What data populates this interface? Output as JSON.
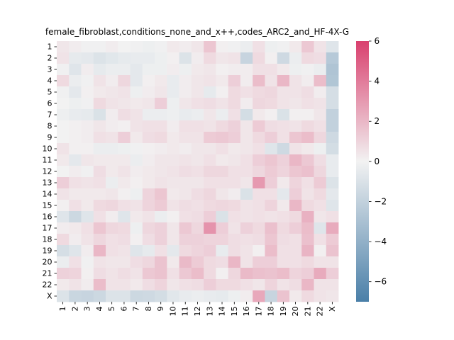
{
  "chart_data": {
    "type": "heatmap",
    "title": "female_fibroblast,conditions_none_and_x++,codes_ARC2_and_HF-4X-G",
    "xlabel": "",
    "ylabel": "",
    "x_categories": [
      "1",
      "2",
      "3",
      "4",
      "5",
      "6",
      "7",
      "8",
      "9",
      "10",
      "11",
      "12",
      "13",
      "14",
      "15",
      "16",
      "17",
      "18",
      "19",
      "20",
      "21",
      "22",
      "X"
    ],
    "y_categories": [
      "1",
      "2",
      "3",
      "4",
      "5",
      "6",
      "7",
      "8",
      "9",
      "10",
      "11",
      "12",
      "13",
      "14",
      "15",
      "16",
      "17",
      "18",
      "19",
      "20",
      "21",
      "22",
      "X"
    ],
    "colorbar": {
      "vmin": -7,
      "vmax": 6,
      "ticks": [
        -6,
        -4,
        -2,
        0,
        2,
        4,
        6
      ],
      "tick_labels": [
        "−6",
        "−4",
        "−2",
        "0",
        "2",
        "4",
        "6"
      ],
      "colormap": "diverging_blue_white_red",
      "color_low": "#4a7fa8",
      "color_mid": "#f2f2f2",
      "color_high": "#d9406e"
    },
    "values": [
      [
        0.4,
        0.2,
        -0.1,
        -0.1,
        0.2,
        0,
        -0.1,
        -0.2,
        -0.1,
        0.3,
        0.2,
        0.4,
        1.5,
        0.1,
        -0.1,
        -0.3,
        0.6,
        -0.2,
        -0.1,
        0.3,
        1.4,
        0.5,
        -0.8
      ],
      [
        0.5,
        -0.5,
        -0.6,
        -0.9,
        -0.7,
        -0.5,
        -0.4,
        -0.4,
        -0.2,
        0.1,
        -0.9,
        0.2,
        0.8,
        0.4,
        0.5,
        -1.8,
        0.8,
        0.1,
        -1.5,
        -0.3,
        0.8,
        0.7,
        -2.5
      ],
      [
        -0.1,
        -0.8,
        0.2,
        -0.5,
        -0.3,
        -0.3,
        -0.6,
        -0.2,
        -0.2,
        0.2,
        -0.2,
        0.3,
        0.4,
        0.1,
        0.2,
        0.2,
        0.6,
        0.6,
        0.3,
        -0.2,
        -0.1,
        -0.3,
        -2.8
      ],
      [
        0.8,
        -0.3,
        -0.1,
        0.5,
        0.2,
        0.9,
        -0.6,
        0.1,
        0.3,
        -0.4,
        0.2,
        0.4,
        0.5,
        0.3,
        1.2,
        0.2,
        1.8,
        0.5,
        2.0,
        0.5,
        0.2,
        1.8,
        -2.7
      ],
      [
        -0.1,
        -0.6,
        0.1,
        0.3,
        0.4,
        0.5,
        -0.2,
        0.2,
        0.4,
        -0.4,
        0.2,
        0.4,
        -0.5,
        0.1,
        0.8,
        0.6,
        0.8,
        0.9,
        0.5,
        0.5,
        0.7,
        0.2,
        -1.2
      ],
      [
        0,
        -0.2,
        -0.1,
        0.8,
        0.5,
        0.4,
        0.3,
        0.4,
        1.2,
        -0.2,
        0.4,
        0.6,
        0.7,
        0.5,
        0.8,
        0.2,
        0.9,
        0.8,
        0.5,
        0.4,
        0.6,
        0.5,
        -1.2
      ],
      [
        -0.2,
        -0.4,
        -0.5,
        -1.0,
        0.2,
        0.7,
        0.5,
        -0.3,
        -0.3,
        -0.2,
        -0.4,
        -0.3,
        0.4,
        -0.3,
        0.6,
        -1.3,
        0.3,
        0.1,
        -1.0,
        0.1,
        0.1,
        0.4,
        -2.0
      ],
      [
        0,
        0.1,
        0.2,
        0.4,
        0.2,
        0.1,
        0.5,
        0.6,
        0.6,
        0.2,
        0.6,
        0.6,
        0.5,
        0.8,
        1.1,
        0.4,
        1.3,
        0.7,
        0.6,
        0.5,
        0.8,
        0.6,
        -2.0
      ],
      [
        0,
        0.1,
        0.2,
        0.6,
        0.5,
        1.2,
        0.3,
        0.7,
        0.8,
        0.3,
        0.5,
        0.5,
        1.3,
        1.4,
        1.2,
        0.4,
        0.8,
        1.2,
        0.6,
        1.5,
        1.8,
        0.9,
        -1.5
      ],
      [
        0.5,
        0.1,
        0.1,
        -0.3,
        -0.3,
        -0.2,
        -0.1,
        0.1,
        0.2,
        0.3,
        0.2,
        0.4,
        0.4,
        0.6,
        0.3,
        0.4,
        0.6,
        -0.8,
        -1.5,
        0.5,
        0.3,
        -0.2,
        -1.3
      ],
      [
        0.3,
        -0.6,
        0.4,
        0.3,
        0.3,
        0.3,
        -0.3,
        0.2,
        0.4,
        0.4,
        0.5,
        0.4,
        0.6,
        0.3,
        0.4,
        0.6,
        1.2,
        1.5,
        1.1,
        2.0,
        1.4,
        0.7,
        -0.4
      ],
      [
        0,
        0.2,
        -0.1,
        0.7,
        0.3,
        0.5,
        0.2,
        0.3,
        0.4,
        0.5,
        0.7,
        0.6,
        0.9,
        0.9,
        0.6,
        0.6,
        0.9,
        1.3,
        1.0,
        1.5,
        1.7,
        0.9,
        -0.4
      ],
      [
        1.2,
        0.6,
        0.5,
        0.6,
        -0.3,
        0.3,
        0.1,
        0.3,
        0.5,
        0.4,
        0.4,
        0.4,
        0.6,
        0.6,
        0.6,
        0.4,
        3.0,
        1.2,
        0.3,
        1.0,
        0.6,
        1.3,
        -0.9
      ],
      [
        0.5,
        0.3,
        0.3,
        0.3,
        0.4,
        0.1,
        -0.2,
        1.0,
        1.5,
        0.3,
        0.4,
        0.7,
        0.9,
        0.4,
        0.2,
        -1.0,
        0.6,
        0.6,
        -0.6,
        1.2,
        0.5,
        0.8,
        -0.6
      ],
      [
        0.1,
        0.6,
        0.3,
        0.8,
        0.9,
        0.6,
        0.5,
        1.0,
        1.3,
        0.5,
        0.7,
        0.6,
        0.8,
        0.9,
        0.8,
        0.5,
        0.6,
        1.0,
        0.3,
        2.0,
        0.8,
        0.6,
        -0.8
      ],
      [
        -0.8,
        -1.6,
        -0.8,
        0.6,
        0.2,
        -0.8,
        0.3,
        0.5,
        -0.3,
        0.1,
        0.6,
        0.7,
        1.2,
        -1.0,
        0.6,
        0.5,
        0.6,
        0.5,
        0.6,
        0.8,
        2.2,
        0.4,
        0.6
      ],
      [
        0.2,
        0.3,
        0.6,
        1.5,
        0.9,
        0.8,
        -0.2,
        0.9,
        1.1,
        0.4,
        1.4,
        0.9,
        3.2,
        1.2,
        0.5,
        1.1,
        0.8,
        1.7,
        0.8,
        1.2,
        1.8,
        -0.8,
        2.4
      ],
      [
        0.8,
        0.2,
        0.5,
        0.9,
        0.6,
        0.7,
        0.1,
        0.7,
        1.1,
        0.4,
        1.1,
        1.1,
        1.0,
        1.0,
        0.7,
        0.6,
        0.7,
        1.5,
        0.7,
        0.6,
        1.7,
        0.6,
        1.3
      ],
      [
        -1.2,
        -0.8,
        0.2,
        2.0,
        0.6,
        0.5,
        -0.8,
        -0.5,
        0.6,
        -0.6,
        0.8,
        1.0,
        1.2,
        -0.4,
        0.7,
        0.5,
        0.1,
        1.8,
        0.6,
        0.6,
        2.1,
        0.1,
        1.6
      ],
      [
        -0.3,
        0.6,
        -0.1,
        0.5,
        0.4,
        0.4,
        0.7,
        0.9,
        1.6,
        0.3,
        1.9,
        1.3,
        0.8,
        0.7,
        2.0,
        0.5,
        1.2,
        1.2,
        0.6,
        0.6,
        0.8,
        0.5,
        0.5
      ],
      [
        1.1,
        1.0,
        0.1,
        0.7,
        0.5,
        0.7,
        0.5,
        1.4,
        1.6,
        0.6,
        1.4,
        1.8,
        0.8,
        0.1,
        0.9,
        1.9,
        1.7,
        1.6,
        1.8,
        1.0,
        1.2,
        2.4,
        1.2
      ],
      [
        0.3,
        0.5,
        0.2,
        1.8,
        0.5,
        0.5,
        0.3,
        0.7,
        1.0,
        0.4,
        0.6,
        0.7,
        1.2,
        0.8,
        0.8,
        0.6,
        0.4,
        1.0,
        0.5,
        0.7,
        2.0,
        0.5,
        0.5
      ],
      [
        -0.9,
        -1.7,
        -1.8,
        -1.6,
        -0.9,
        -0.9,
        -1.6,
        -1.5,
        -1.3,
        -0.7,
        -0.4,
        -0.3,
        -0.4,
        -0.5,
        -0.2,
        0.2,
        2.5,
        -1.8,
        1.6,
        0.3,
        0.8,
        0.5,
        0.4
      ]
    ]
  }
}
